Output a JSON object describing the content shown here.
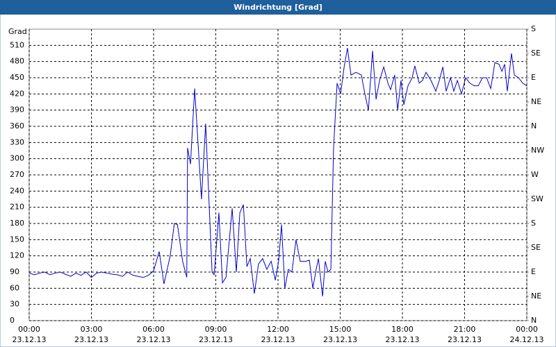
{
  "chart_data": {
    "type": "line",
    "title": "Windrichtung [Grad]",
    "ylabel": "Grad",
    "x": [
      0,
      0.25,
      0.5,
      0.75,
      1,
      1.25,
      1.5,
      1.75,
      2,
      2.25,
      2.5,
      2.75,
      3,
      3.25,
      3.5,
      3.75,
      4,
      4.25,
      4.5,
      4.75,
      5,
      5.25,
      5.5,
      5.75,
      6,
      6.27,
      6.5,
      6.8,
      7,
      7.15,
      7.4,
      7.6,
      7.64,
      7.78,
      7.98,
      8.31,
      8.51,
      8.82,
      8.92,
      9.15,
      9.32,
      9.49,
      9.79,
      9.99,
      10.16,
      10.33,
      10.5,
      10.66,
      10.86,
      11.06,
      11.26,
      11.46,
      11.67,
      11.87,
      12.03,
      12.17,
      12.33,
      12.5,
      12.67,
      12.87,
      13.07,
      13.34,
      13.51,
      13.68,
      13.84,
      13.95,
      14.15,
      14.28,
      14.41,
      14.55,
      14.68,
      14.85,
      15.02,
      15.19,
      15.35,
      15.52,
      15.76,
      16.02,
      16.19,
      16.36,
      16.56,
      16.73,
      16.9,
      17.1,
      17.3,
      17.43,
      17.63,
      17.77,
      17.93,
      18.07,
      18.27,
      18.47,
      18.6,
      18.81,
      18.97,
      19.14,
      19.38,
      19.61,
      19.78,
      19.95,
      20.11,
      20.32,
      20.48,
      20.65,
      20.85,
      21.05,
      21.25,
      21.46,
      21.66,
      21.86,
      22.06,
      22.26,
      22.46,
      22.66,
      22.8,
      22.93,
      23.06,
      23.26,
      23.4,
      23.6,
      23.8,
      24
    ],
    "series": [
      {
        "name": "Windrichtung",
        "color": "#0000cc",
        "values": [
          88,
          85,
          88,
          90,
          85,
          88,
          90,
          86,
          82,
          88,
          84,
          90,
          80,
          88,
          90,
          88,
          86,
          85,
          82,
          90,
          84,
          82,
          80,
          84,
          92,
          128,
          68,
          120,
          180,
          178,
          110,
          80,
          320,
          290,
          430,
          225,
          365,
          90,
          85,
          200,
          70,
          80,
          208,
          90,
          200,
          215,
          100,
          115,
          50,
          105,
          115,
          95,
          110,
          75,
          110,
          178,
          60,
          95,
          90,
          150,
          110,
          110,
          112,
          60,
          95,
          115,
          45,
          110,
          90,
          95,
          320,
          440,
          420,
          470,
          505,
          455,
          460,
          455,
          420,
          390,
          500,
          410,
          445,
          470,
          440,
          428,
          455,
          390,
          445,
          400,
          435,
          450,
          472,
          440,
          445,
          460,
          445,
          425,
          445,
          470,
          425,
          450,
          425,
          445,
          420,
          450,
          440,
          435,
          435,
          450,
          450,
          430,
          478,
          475,
          462,
          475,
          425,
          495,
          455,
          450,
          440,
          435
        ]
      }
    ],
    "xlim": [
      0,
      24
    ],
    "xticks": [
      {
        "value": 0,
        "label": [
          "00:00",
          "23.12.13"
        ]
      },
      {
        "value": 3,
        "label": [
          "03:00",
          "23.12.13"
        ]
      },
      {
        "value": 6,
        "label": [
          "06:00",
          "23.12.13"
        ]
      },
      {
        "value": 9,
        "label": [
          "09:00",
          "23.12.13"
        ]
      },
      {
        "value": 12,
        "label": [
          "12:00",
          "23.12.13"
        ]
      },
      {
        "value": 15,
        "label": [
          "15:00",
          "23.12.13"
        ]
      },
      {
        "value": 18,
        "label": [
          "18:00",
          "23.12.13"
        ]
      },
      {
        "value": 21,
        "label": [
          "21:00",
          "23.12.13"
        ]
      },
      {
        "value": 24,
        "label": [
          "00:00",
          "24.12.13"
        ]
      }
    ],
    "ylim": [
      0,
      540
    ],
    "yticks": [
      0,
      30,
      60,
      90,
      120,
      150,
      180,
      210,
      240,
      270,
      300,
      330,
      360,
      390,
      420,
      450,
      480,
      510
    ],
    "y2lim": [
      0,
      540
    ],
    "y2ticks": [
      {
        "value": 0,
        "label": "N"
      },
      {
        "value": 45,
        "label": "NE"
      },
      {
        "value": 90,
        "label": "E"
      },
      {
        "value": 135,
        "label": "SE"
      },
      {
        "value": 180,
        "label": "S"
      },
      {
        "value": 225,
        "label": "SW"
      },
      {
        "value": 270,
        "label": "W"
      },
      {
        "value": 315,
        "label": "NW"
      },
      {
        "value": 360,
        "label": "N"
      },
      {
        "value": 405,
        "label": "NE"
      },
      {
        "value": 450,
        "label": "E"
      },
      {
        "value": 495,
        "label": "SE"
      },
      {
        "value": 540,
        "label": "S"
      }
    ],
    "grid": true
  }
}
